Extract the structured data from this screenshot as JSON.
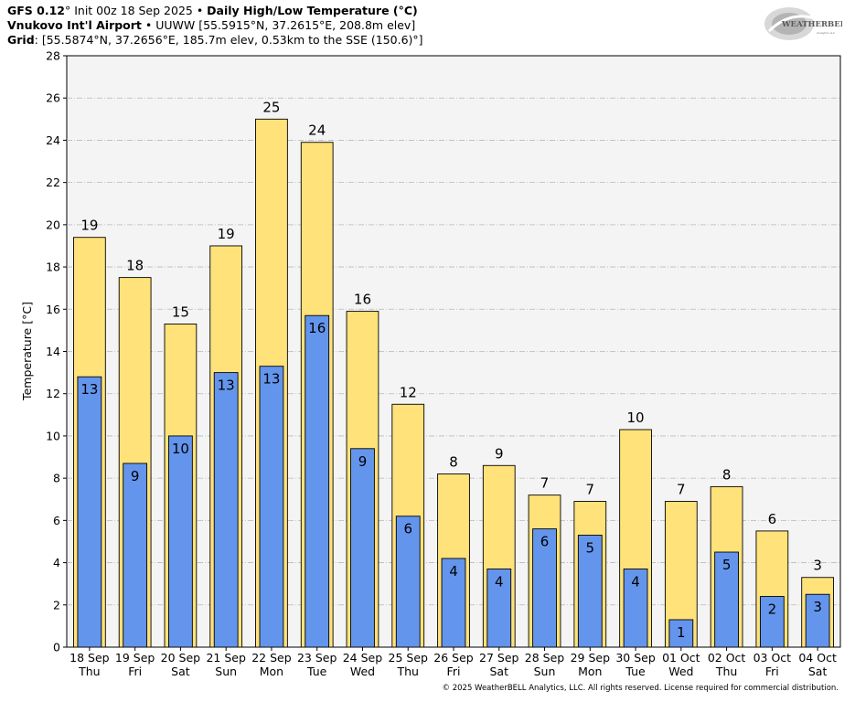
{
  "header": {
    "line1_model": "GFS 0.12",
    "line1_deg": "°",
    "line1_init": " Init 00z 18 Sep 2025 • ",
    "line1_product": "Daily High/Low Temperature (°C)",
    "line2_station": "Vnukovo Int'l Airport",
    "line2_rest": " • UUWW [55.5915°N, 37.2615°E, 208.8m elev]",
    "line3_label": "Grid",
    "line3_rest": ": [55.5874°N, 37.2656°E, 185.7m elev, 0.53km to the SSE (150.6)°]"
  },
  "logo": {
    "text": "WEATHERBELL",
    "subtext": "Analytics LLC"
  },
  "copyright": "© 2025 WeatherBELL Analytics, LLC. All rights reserved. License required for commercial distribution.",
  "colors": {
    "high": "#ffe27a",
    "low": "#6495ed",
    "plot_bg": "#f4f4f4",
    "grid": "#b8b8b8"
  },
  "chart_data": {
    "type": "bar",
    "ylabel": "Temperature [°C]",
    "ylim": [
      0,
      28
    ],
    "yticks": [
      0,
      2,
      4,
      6,
      8,
      10,
      12,
      14,
      16,
      18,
      20,
      22,
      24,
      26,
      28
    ],
    "grid": true,
    "categories": [
      {
        "date": "18 Sep",
        "day": "Thu"
      },
      {
        "date": "19 Sep",
        "day": "Fri"
      },
      {
        "date": "20 Sep",
        "day": "Sat"
      },
      {
        "date": "21 Sep",
        "day": "Sun"
      },
      {
        "date": "22 Sep",
        "day": "Mon"
      },
      {
        "date": "23 Sep",
        "day": "Tue"
      },
      {
        "date": "24 Sep",
        "day": "Wed"
      },
      {
        "date": "25 Sep",
        "day": "Thu"
      },
      {
        "date": "26 Sep",
        "day": "Fri"
      },
      {
        "date": "27 Sep",
        "day": "Sat"
      },
      {
        "date": "28 Sep",
        "day": "Sun"
      },
      {
        "date": "29 Sep",
        "day": "Mon"
      },
      {
        "date": "30 Sep",
        "day": "Tue"
      },
      {
        "date": "01 Oct",
        "day": "Wed"
      },
      {
        "date": "02 Oct",
        "day": "Thu"
      },
      {
        "date": "03 Oct",
        "day": "Fri"
      },
      {
        "date": "04 Oct",
        "day": "Sat"
      }
    ],
    "series": [
      {
        "name": "High",
        "values": [
          19.4,
          17.5,
          15.3,
          19.0,
          25.0,
          23.9,
          15.9,
          11.5,
          8.2,
          8.6,
          7.2,
          6.9,
          10.3,
          6.9,
          7.6,
          5.5,
          3.3
        ],
        "labels": [
          "19",
          "18",
          "15",
          "19",
          "25",
          "24",
          "16",
          "12",
          "8",
          "9",
          "7",
          "7",
          "10",
          "7",
          "8",
          "6",
          "3"
        ]
      },
      {
        "name": "Low",
        "values": [
          12.8,
          8.7,
          10.0,
          13.0,
          13.3,
          15.7,
          9.4,
          6.2,
          4.2,
          3.7,
          5.6,
          5.3,
          3.7,
          1.3,
          4.5,
          2.4,
          2.5
        ],
        "labels": [
          "13",
          "9",
          "10",
          "13",
          "13",
          "16",
          "9",
          "6",
          "4",
          "4",
          "6",
          "5",
          "4",
          "1",
          "5",
          "2",
          "3"
        ]
      }
    ]
  }
}
